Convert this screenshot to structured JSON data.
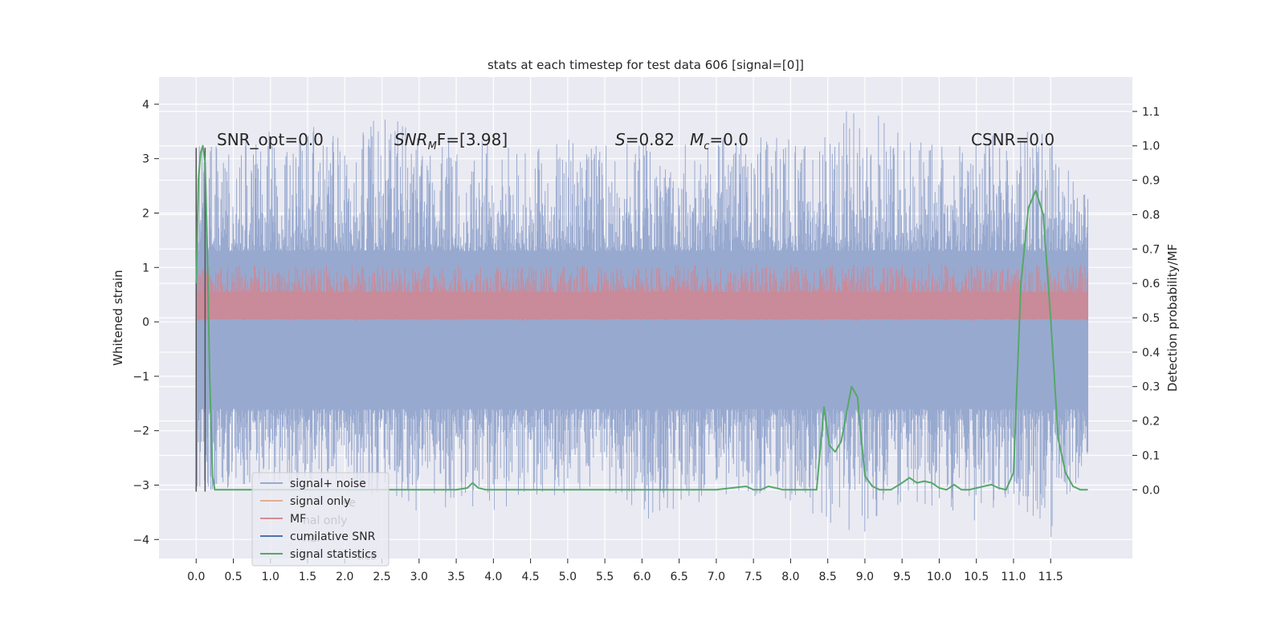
{
  "chart_data": {
    "type": "line",
    "title": "stats at each timestep for test data 606 [signal=[0]]",
    "xlabel": "",
    "ylabel": "Whitened strain",
    "y2label": "Detection probability/MF",
    "xlim": [
      -0.5,
      12.6
    ],
    "ylim": [
      -4.35,
      4.5
    ],
    "y2lim": [
      -0.2,
      1.2
    ],
    "xticks": [
      "0.0",
      "0.5",
      "1.0",
      "1.5",
      "2.0",
      "2.5",
      "3.0",
      "3.5",
      "4.0",
      "4.5",
      "5.0",
      "5.5",
      "6.0",
      "6.5",
      "7.0",
      "7.5",
      "8.0",
      "8.5",
      "9.0",
      "9.5",
      "10.0",
      "10.5",
      "11.0",
      "11.5"
    ],
    "yticks": [
      4,
      3,
      2,
      1,
      0,
      -1,
      -2,
      -3,
      -4
    ],
    "yticks_text": [
      "4",
      "3",
      "2",
      "1",
      "0",
      "−1",
      "−2",
      "−3",
      "−4"
    ],
    "y2ticks": [
      "1.1",
      "1.0",
      "0.9",
      "0.8",
      "0.7",
      "0.6",
      "0.5",
      "0.4",
      "0.3",
      "0.2",
      "0.1",
      "0.0"
    ],
    "grid": true,
    "legend_position": "lower-left",
    "colors": {
      "noise": "#98a9cf",
      "mf": "#c98a99",
      "stat": "#55a868",
      "signal_only": "#dd8452",
      "mf_legend": "#c44e52",
      "cumulative": "#4c72b0",
      "vline": "#555555",
      "background": "#eaeaf2"
    },
    "annotations": [
      {
        "text": "SNR_opt=0.0"
      },
      {
        "text": "SNR",
        "sub": "M",
        "rest": "F=[3.98]"
      },
      {
        "text": "S",
        "rest": "=0.82"
      },
      {
        "text": "M",
        "sub": "c",
        "rest": "=0.0"
      },
      {
        "text": "CSNR=0.0"
      }
    ],
    "legend": [
      {
        "label": "signal+ noise",
        "color": "#98a9cf"
      },
      {
        "label": "signal only",
        "color": "#dd8452"
      },
      {
        "label": "MF",
        "color": "#c44e52"
      },
      {
        "label": "cumilative SNR",
        "color": "#4c72b0"
      },
      {
        "label": "signal statistics",
        "color": "#55a868"
      }
    ],
    "legend_ghost": [
      {
        "label": "se"
      },
      {
        "label": "nal only"
      },
      {
        "label": "nai"
      },
      {
        "label": "tics"
      }
    ],
    "series": [
      {
        "name": "signal+ noise",
        "axis": "left",
        "envelope": {
          "x": [
            0.0,
            0.5,
            1.0,
            1.5,
            2.0,
            2.5,
            3.0,
            3.5,
            4.0,
            4.5,
            5.0,
            5.5,
            6.0,
            6.5,
            7.0,
            7.5,
            8.0,
            8.5,
            9.0,
            9.5,
            10.0,
            10.5,
            11.0,
            11.5,
            12.0
          ],
          "upper": [
            3.2,
            3.6,
            3.5,
            3.6,
            3.5,
            3.8,
            3.8,
            3.5,
            3.3,
            3.2,
            3.4,
            3.3,
            3.3,
            3.3,
            3.4,
            3.4,
            3.4,
            3.7,
            4.1,
            3.5,
            3.4,
            3.4,
            3.5,
            3.5,
            2.3
          ],
          "lower": [
            -3.1,
            -3.1,
            -3.0,
            -3.1,
            -3.0,
            -3.3,
            -3.5,
            -3.4,
            -3.5,
            -3.2,
            -3.3,
            -3.2,
            -3.7,
            -3.4,
            -3.3,
            -3.2,
            -3.3,
            -3.8,
            -3.9,
            -3.3,
            -3.4,
            -3.8,
            -3.3,
            -4.0,
            -2.5
          ],
          "core_upper": 1.3,
          "core_lower": -1.6
        }
      },
      {
        "name": "MF",
        "axis": "left",
        "envelope": {
          "center": 0.28,
          "upper": 1.05,
          "lower": 0.02
        }
      },
      {
        "name": "signal statistics",
        "axis": "right",
        "x": [
          0.0,
          0.03,
          0.06,
          0.09,
          0.12,
          0.15,
          0.18,
          0.22,
          0.25,
          0.3,
          0.5,
          1.0,
          2.0,
          3.0,
          3.5,
          3.65,
          3.72,
          3.8,
          3.9,
          4.5,
          5.0,
          6.0,
          7.0,
          7.2,
          7.4,
          7.5,
          7.6,
          7.7,
          7.8,
          7.9,
          8.0,
          8.2,
          8.35,
          8.45,
          8.52,
          8.6,
          8.68,
          8.75,
          8.82,
          8.9,
          9.0,
          9.1,
          9.2,
          9.35,
          9.5,
          9.6,
          9.7,
          9.8,
          9.9,
          10.0,
          10.1,
          10.2,
          10.3,
          10.4,
          10.5,
          10.6,
          10.7,
          10.8,
          10.9,
          11.0,
          11.1,
          11.2,
          11.3,
          11.4,
          11.5,
          11.6,
          11.7,
          11.8,
          11.9,
          12.0
        ],
        "y": [
          0.6,
          0.9,
          0.98,
          1.0,
          0.95,
          0.7,
          0.35,
          0.04,
          0.0,
          0.0,
          0.0,
          0.0,
          0.0,
          0.0,
          0.0,
          0.005,
          0.02,
          0.005,
          0.0,
          0.0,
          0.0,
          0.0,
          0.0,
          0.005,
          0.01,
          0.0,
          0.0,
          0.01,
          0.005,
          0.0,
          0.0,
          0.0,
          0.0,
          0.24,
          0.13,
          0.11,
          0.14,
          0.22,
          0.3,
          0.27,
          0.04,
          0.01,
          0.0,
          0.0,
          0.02,
          0.035,
          0.02,
          0.025,
          0.02,
          0.005,
          0.0,
          0.015,
          0.0,
          0.0,
          0.005,
          0.01,
          0.015,
          0.005,
          0.0,
          0.05,
          0.6,
          0.82,
          0.87,
          0.8,
          0.5,
          0.15,
          0.05,
          0.01,
          0.0,
          0.0
        ]
      }
    ],
    "vlines": [
      {
        "x": 0.0,
        "ymin": -3.12,
        "ymax": 3.2
      },
      {
        "x": 0.12,
        "ymin": -3.12,
        "ymax": 3.2
      }
    ]
  }
}
